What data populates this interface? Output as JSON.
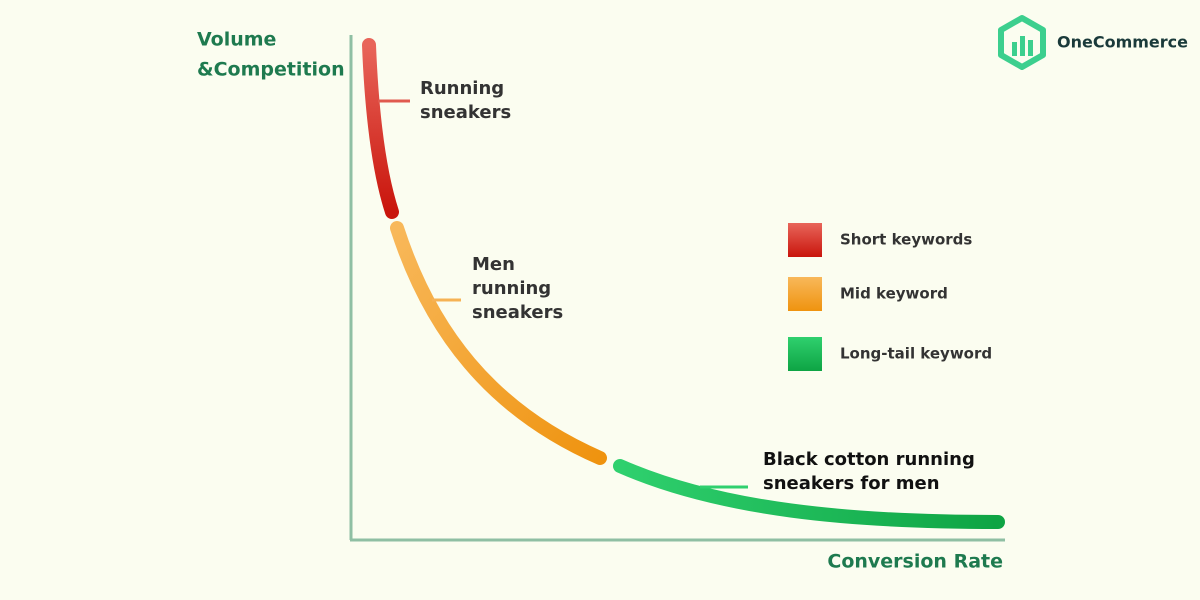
{
  "brand": "OneCommerce",
  "axes": {
    "y_label": [
      "Volume",
      "&Competition"
    ],
    "x_label": "Conversion Rate"
  },
  "curve_labels": [
    {
      "lines": [
        "Running",
        "sneakers"
      ]
    },
    {
      "lines": [
        "Men",
        "running",
        "sneakers"
      ]
    },
    {
      "lines": [
        "Black cotton running",
        "sneakers for men"
      ]
    }
  ],
  "legend": [
    "Short keywords",
    "Mid keyword",
    "Long-tail keyword"
  ]
}
